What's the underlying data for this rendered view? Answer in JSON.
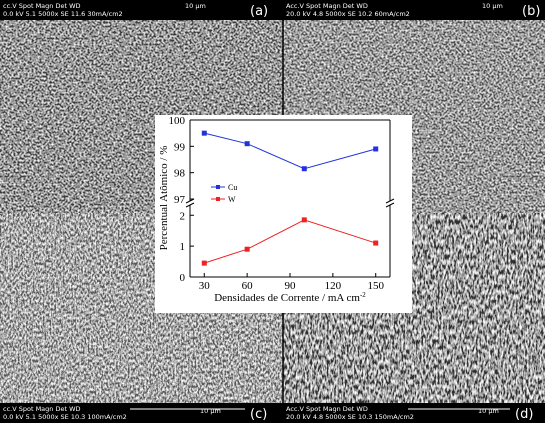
{
  "panels": [
    {
      "line1": "cc.V  Spot Magn   Det  WD",
      "line2": "0.0 kV 5.1  5000x   SE  11.6  30mA/cm2",
      "scale": "10 μm",
      "label": "(a)"
    },
    {
      "line1": "Acc.V  Spot Magn   Det  WD",
      "line2": "20.0 kV 4.8  5000x   SE  10.2        60mA/cm2",
      "scale": "10 μm",
      "label": "(b)"
    },
    {
      "line1": "cc.V  Spot Magn   Det  WD",
      "line2": "0.0 kV 5.1  5000x   SE  10.3      100mA/cm2",
      "scale": "10 μm",
      "label": "(c)"
    },
    {
      "line1": "Acc.V  Spot Magn   Det  WD",
      "line2": "20.0 kV 4.8  5000x   SE  10.3      150mA/cm2",
      "scale": "10 μm",
      "label": "(d)"
    }
  ],
  "chart_data": {
    "type": "line",
    "x_label": "Densidades de Corrente / mA cm",
    "x_label_superscript": "-2",
    "y_label": "Percentual Atômico / %",
    "x": [
      30,
      60,
      100,
      150
    ],
    "xlim": [
      20,
      160
    ],
    "xticks": [
      30,
      60,
      90,
      120,
      150
    ],
    "panels": [
      {
        "ylim": [
          97,
          100
        ],
        "yticks": [
          97,
          98,
          99,
          100
        ],
        "series": [
          {
            "name": "Cu",
            "color": "#2233dd",
            "values": [
              99.5,
              99.1,
              98.15,
              98.9
            ]
          }
        ]
      },
      {
        "ylim": [
          0,
          2.3
        ],
        "yticks": [
          0,
          1,
          2
        ],
        "series": [
          {
            "name": "W",
            "color": "#ee2222",
            "values": [
              0.45,
              0.9,
              1.85,
              1.1
            ]
          }
        ]
      }
    ]
  }
}
